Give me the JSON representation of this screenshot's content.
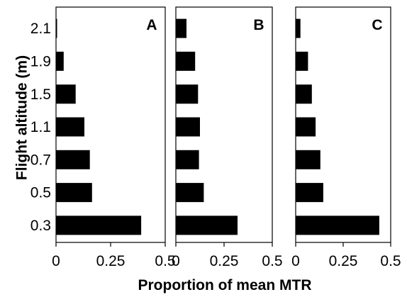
{
  "chart_data": [
    {
      "type": "bar",
      "orientation": "horizontal",
      "panel_label": "A",
      "categories": [
        "0.3",
        "0.5",
        "0.7",
        "1.1",
        "1.5",
        "1.9",
        "2.1"
      ],
      "values": [
        0.39,
        0.165,
        0.155,
        0.13,
        0.09,
        0.035,
        0.005
      ],
      "xlim": [
        0,
        0.5
      ],
      "xticks": [
        "0",
        "0.25",
        "0.5"
      ]
    },
    {
      "type": "bar",
      "orientation": "horizontal",
      "panel_label": "B",
      "categories": [
        "0.3",
        "0.5",
        "0.7",
        "1.1",
        "1.5",
        "1.9",
        "2.1"
      ],
      "values": [
        0.32,
        0.145,
        0.12,
        0.125,
        0.115,
        0.1,
        0.055
      ],
      "xlim": [
        0,
        0.5
      ],
      "xticks": [
        "0",
        "0.25",
        "0.5"
      ]
    },
    {
      "type": "bar",
      "orientation": "horizontal",
      "panel_label": "C",
      "categories": [
        "0.3",
        "0.5",
        "0.7",
        "1.1",
        "1.5",
        "1.9",
        "2.1"
      ],
      "values": [
        0.44,
        0.145,
        0.13,
        0.105,
        0.085,
        0.065,
        0.025
      ],
      "xlim": [
        0,
        0.5
      ],
      "xticks": [
        "0",
        "0.25",
        "0.5"
      ]
    }
  ],
  "ylabel": "Flight altitude (m)",
  "xlabel": "Proportion  of mean MTR",
  "colors": {
    "bar": "#000000",
    "axis": "#000000",
    "background": "#ffffff"
  }
}
